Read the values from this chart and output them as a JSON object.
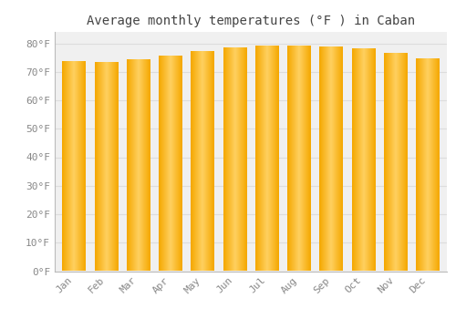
{
  "title": "Average monthly temperatures (°F ) in Caban",
  "months": [
    "Jan",
    "Feb",
    "Mar",
    "Apr",
    "May",
    "Jun",
    "Jul",
    "Aug",
    "Sep",
    "Oct",
    "Nov",
    "Dec"
  ],
  "values": [
    73.3,
    73.0,
    74.0,
    75.3,
    77.0,
    78.2,
    79.0,
    79.0,
    78.5,
    78.0,
    76.3,
    74.3
  ],
  "bar_color_center": "#FFD060",
  "bar_color_edge": "#F5A800",
  "background_color": "#FFFFFF",
  "plot_bg_color": "#F0F0F0",
  "grid_color": "#DDDDDD",
  "ytick_labels": [
    "0°F",
    "10°F",
    "20°F",
    "30°F",
    "40°F",
    "50°F",
    "60°F",
    "70°F",
    "80°F"
  ],
  "ytick_values": [
    0,
    10,
    20,
    30,
    40,
    50,
    60,
    70,
    80
  ],
  "ylim": [
    0,
    84
  ],
  "title_fontsize": 10,
  "tick_fontsize": 8,
  "title_color": "#444444",
  "tick_color": "#888888",
  "font_family": "monospace"
}
